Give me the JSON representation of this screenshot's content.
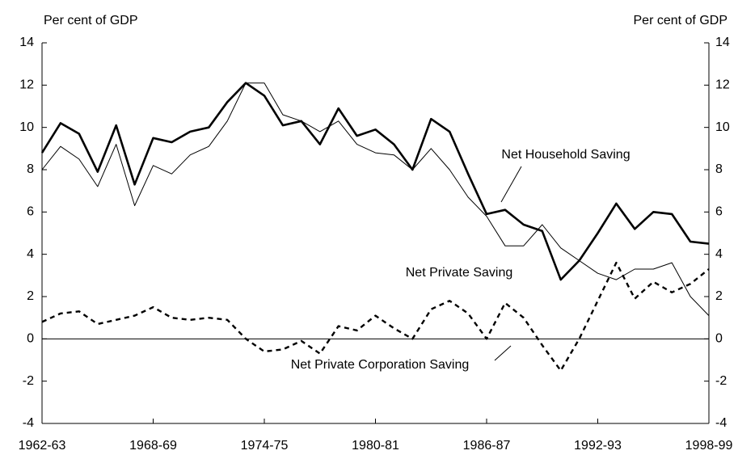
{
  "chart_data": {
    "type": "line",
    "y_label": "Per cent of GDP",
    "y2_label": "Per cent of GDP",
    "categories": [
      "1962-63",
      null,
      null,
      null,
      null,
      null,
      "1968-69",
      null,
      null,
      null,
      null,
      null,
      "1974-75",
      null,
      null,
      null,
      null,
      null,
      "1980-81",
      null,
      null,
      null,
      null,
      null,
      "1986-87",
      null,
      null,
      null,
      null,
      null,
      "1992-93",
      null,
      null,
      null,
      null,
      null,
      "1998-99"
    ],
    "series": [
      {
        "name": "Net Household Saving",
        "color": "#000000",
        "line_width": 2.6,
        "dash": false,
        "values": [
          8.8,
          10.2,
          9.7,
          7.9,
          10.1,
          7.3,
          9.5,
          9.3,
          9.8,
          10.0,
          11.2,
          12.1,
          11.5,
          10.1,
          10.3,
          9.2,
          10.9,
          9.6,
          9.9,
          9.2,
          8.0,
          10.4,
          9.8,
          7.8,
          5.9,
          6.1,
          5.4,
          5.1,
          2.8,
          3.7,
          5.0,
          6.4,
          5.2,
          6.0,
          5.9,
          4.6,
          4.5
        ]
      },
      {
        "name": "Net Private Saving",
        "color": "#000000",
        "line_width": 1,
        "dash": false,
        "values": [
          8.0,
          9.1,
          8.5,
          7.2,
          9.2,
          6.3,
          8.2,
          7.8,
          8.7,
          9.1,
          10.3,
          12.1,
          12.1,
          10.6,
          10.3,
          9.8,
          10.3,
          9.2,
          8.8,
          8.7,
          8.0,
          9.0,
          8.0,
          6.7,
          5.8,
          4.4,
          4.4,
          5.4,
          4.3,
          3.7,
          3.1,
          2.8,
          3.3,
          3.3,
          3.6,
          2.0,
          1.1
        ]
      },
      {
        "name": "Net Private Corporation Saving",
        "color": "#000000",
        "line_width": 2.4,
        "dash": true,
        "values": [
          0.8,
          1.2,
          1.3,
          0.7,
          0.9,
          1.1,
          1.5,
          1.0,
          0.9,
          1.0,
          0.9,
          0.0,
          -0.6,
          -0.5,
          -0.1,
          -0.7,
          0.6,
          0.4,
          1.1,
          0.5,
          0.0,
          1.4,
          1.8,
          1.2,
          0.0,
          1.7,
          1.0,
          -0.3,
          -1.5,
          0.0,
          1.8,
          3.6,
          1.9,
          2.7,
          2.2,
          2.6,
          3.3
        ]
      }
    ],
    "ylim": [
      -4,
      14
    ],
    "yticks": [
      -4,
      -2,
      0,
      2,
      4,
      6,
      8,
      10,
      12,
      14
    ],
    "y2lim": [
      -4,
      14
    ],
    "y2ticks": [
      -4,
      -2,
      0,
      2,
      4,
      6,
      8,
      10,
      12,
      14
    ],
    "zero_line": true
  }
}
